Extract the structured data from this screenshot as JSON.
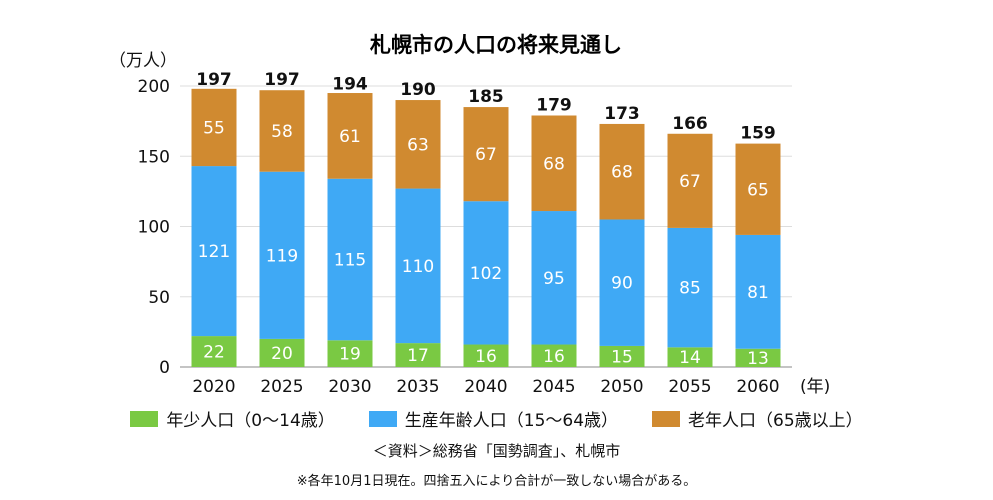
{
  "chart_data": {
    "type": "bar",
    "stacked": true,
    "title": "札幌市の人口の将来見通し",
    "ylabel": "（万人）",
    "xlabel": "(年)",
    "ylim": [
      0,
      200
    ],
    "yticks": [
      0,
      50,
      100,
      150,
      200
    ],
    "grid": true,
    "categories": [
      "2020",
      "2025",
      "2030",
      "2035",
      "2040",
      "2045",
      "2050",
      "2055",
      "2060"
    ],
    "series": [
      {
        "name": "年少人口（0～14歳）",
        "color": "#7ac943",
        "values": [
          22,
          20,
          19,
          17,
          16,
          16,
          15,
          14,
          13
        ]
      },
      {
        "name": "生産年齢人口（15～64歳）",
        "color": "#3fa9f5",
        "values": [
          121,
          119,
          115,
          110,
          102,
          95,
          90,
          85,
          81
        ]
      },
      {
        "name": "老年人口（65歳以上）",
        "color": "#d08a30",
        "values": [
          55,
          58,
          61,
          63,
          67,
          68,
          68,
          67,
          65
        ]
      }
    ],
    "totals": [
      197,
      197,
      194,
      190,
      185,
      179,
      173,
      166,
      159
    ],
    "legend_position": "bottom"
  },
  "source": "＜資料＞総務省「国勢調査」、札幌市",
  "note": "※各年10月1日現在。四捨五入により合計が一致しない場合がある。"
}
